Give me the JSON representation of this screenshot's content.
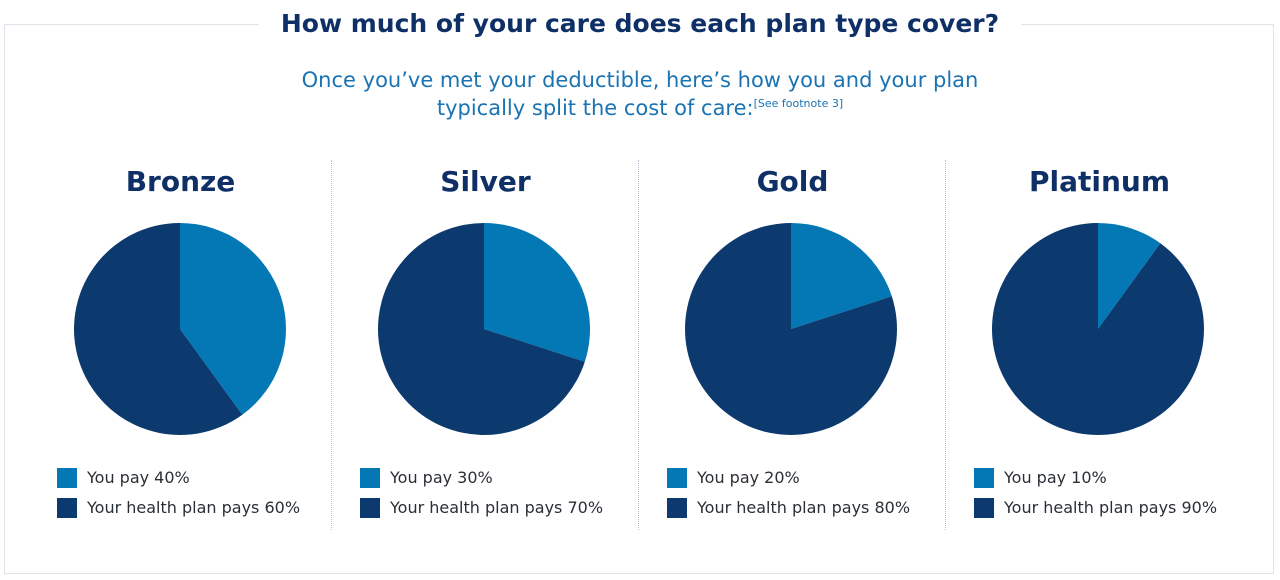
{
  "header": {
    "title": "How much of your care does each plan type cover?",
    "subtitle_line1": "Once you’ve met your deductible, here’s how you and your plan",
    "subtitle_line2": "typically split the cost of care:",
    "footnote": "[See footnote 3]"
  },
  "colors": {
    "you_pay": "#0478b5",
    "plan_pays": "#0c3a6e",
    "title": "#0f3067",
    "subtitle": "#1a73b3"
  },
  "chart_data": [
    {
      "type": "pie",
      "title": "Bronze",
      "labels": [
        "You pay 40%",
        "Your health plan pays 60%"
      ],
      "values": [
        40,
        60
      ]
    },
    {
      "type": "pie",
      "title": "Silver",
      "labels": [
        "You pay 30%",
        "Your health plan pays 70%"
      ],
      "values": [
        30,
        70
      ]
    },
    {
      "type": "pie",
      "title": "Gold",
      "labels": [
        "You pay 20%",
        "Your health plan pays 80%"
      ],
      "values": [
        20,
        80
      ]
    },
    {
      "type": "pie",
      "title": "Platinum",
      "labels": [
        "You pay 10%",
        "Your health plan pays 90%"
      ],
      "values": [
        10,
        90
      ]
    }
  ]
}
